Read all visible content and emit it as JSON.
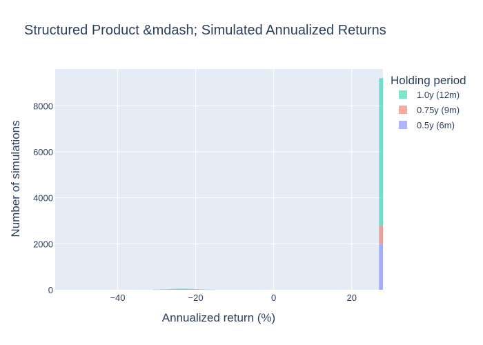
{
  "chart_data": {
    "type": "bar",
    "title": "Structured Product &mdash; Simulated Annualized Returns",
    "xlabel": "Annualized return (%)",
    "ylabel": "Number of simulations",
    "xlim": [
      -56,
      28
    ],
    "ylim": [
      0,
      9600
    ],
    "xticks": [
      -40,
      -20,
      0,
      20
    ],
    "yticks": [
      0,
      2000,
      4000,
      6000,
      8000
    ],
    "barmode": "stack",
    "grid": true,
    "legend": {
      "title": "Holding period",
      "position": "right"
    },
    "series": [
      {
        "name": "0.5y (6m)",
        "color": "#636efa",
        "x": [
          27.5
        ],
        "values": [
          2000
        ]
      },
      {
        "name": "0.75y (9m)",
        "color": "#ef553b",
        "x": [
          27.5
        ],
        "values": [
          800
        ]
      },
      {
        "name": "1.0y (12m)",
        "color": "#00cc96",
        "x": [
          -30.5,
          -29.5,
          -28.5,
          -27.5,
          -26.5,
          -25.5,
          -24.5,
          -23.5,
          -22.5,
          -21.5,
          -20.5,
          -19.5,
          -18.5,
          -17.5,
          -16.5,
          -15.5,
          27.5
        ],
        "values": [
          8,
          12,
          18,
          24,
          30,
          38,
          44,
          50,
          46,
          40,
          34,
          26,
          18,
          12,
          8,
          4,
          6400
        ]
      }
    ]
  }
}
